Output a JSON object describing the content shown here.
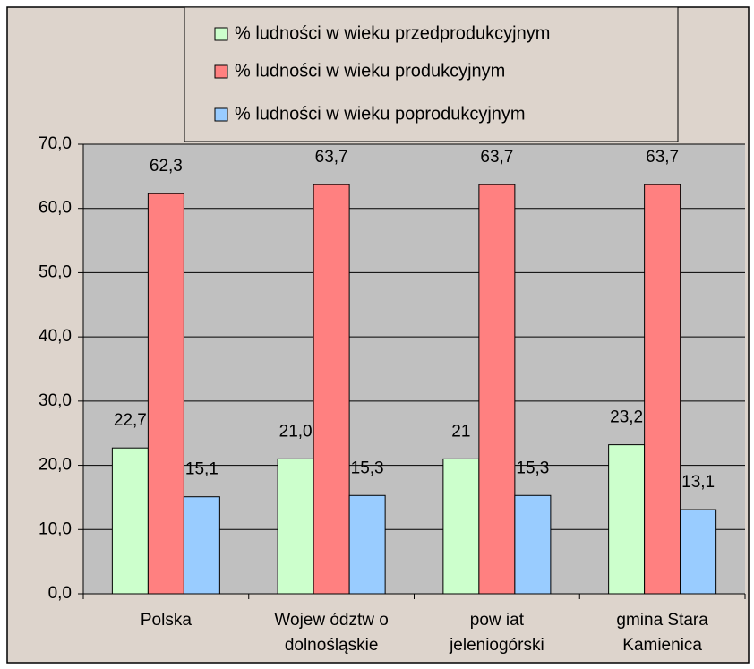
{
  "chart_data": {
    "type": "bar",
    "categories": [
      "Polska",
      "Wojew ództw o\ndolnośląskie",
      "pow iat\njeleniogórski",
      "gmina Stara\nKamienica"
    ],
    "series": [
      {
        "name": "% ludności w wieku przedprodukcyjnym",
        "color": "#ccffcc",
        "values": [
          22.7,
          21.0,
          21,
          23.2
        ],
        "value_labels": [
          "22,7",
          "21,0",
          "21",
          "23,2"
        ]
      },
      {
        "name": "% ludności w wieku produkcyjnym",
        "color": "#ff8080",
        "values": [
          62.3,
          63.7,
          63.7,
          63.7
        ],
        "value_labels": [
          "62,3",
          "63,7",
          "63,7",
          "63,7"
        ]
      },
      {
        "name": "% ludności w wieku poprodukcyjnym",
        "color": "#99ccff",
        "values": [
          15.1,
          15.3,
          15.3,
          13.1
        ],
        "value_labels": [
          "15,1",
          "15,3",
          "15,3",
          "13,1"
        ]
      }
    ],
    "ylim": [
      0,
      70
    ],
    "yticks": [
      {
        "value": 0,
        "label": "0,0"
      },
      {
        "value": 10,
        "label": "10,0"
      },
      {
        "value": 20,
        "label": "20,0"
      },
      {
        "value": 30,
        "label": "30,0"
      },
      {
        "value": 40,
        "label": "40,0"
      },
      {
        "value": 50,
        "label": "50,0"
      },
      {
        "value": 60,
        "label": "60,0"
      },
      {
        "value": 70,
        "label": "70,0"
      }
    ],
    "grid": true,
    "legend": "top"
  }
}
